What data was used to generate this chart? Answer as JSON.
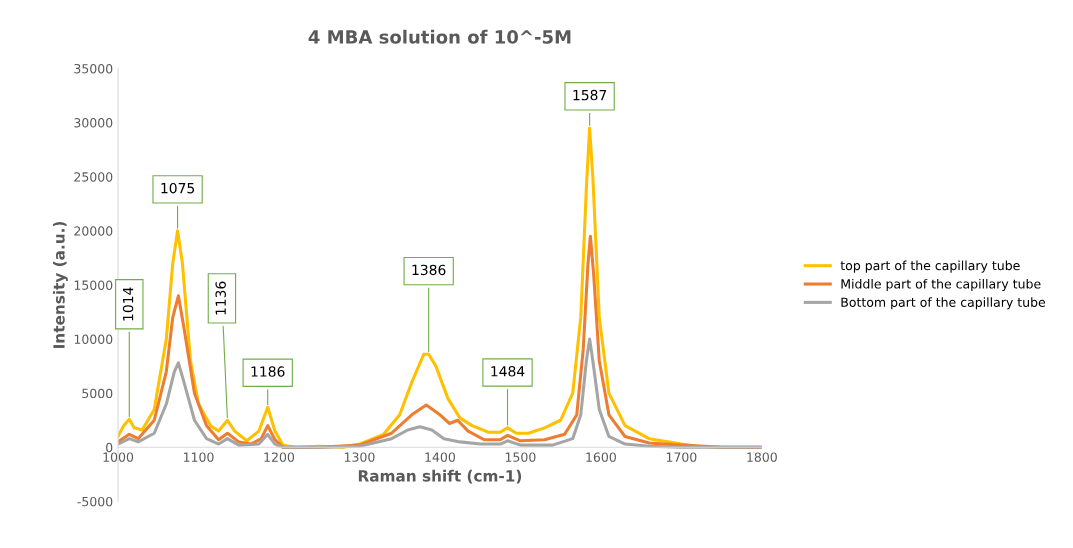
{
  "chart_data": {
    "type": "line",
    "title": "4 MBA solution of 10^-5M",
    "xlabel": "Raman shift (cm-1)",
    "ylabel": "Intensity (a.u.)",
    "xlim": [
      1000,
      1800
    ],
    "xticks": [
      1000,
      1100,
      1200,
      1300,
      1400,
      1500,
      1600,
      1700,
      1800
    ],
    "ylim": [
      -5000,
      35000
    ],
    "yticks": [
      -5000,
      0,
      5000,
      10000,
      15000,
      20000,
      25000,
      30000,
      35000
    ],
    "grid": false,
    "legend": "right",
    "marker": "none",
    "line_style": "solid",
    "series": [
      {
        "name": "top part of the capillary tube",
        "color": "#ffc000",
        "x": [
          1000,
          1007,
          1014,
          1020,
          1030,
          1045,
          1060,
          1068,
          1074,
          1080,
          1090,
          1100,
          1115,
          1125,
          1136,
          1145,
          1160,
          1175,
          1186,
          1195,
          1205,
          1220,
          1250,
          1280,
          1300,
          1330,
          1350,
          1365,
          1380,
          1386,
          1395,
          1410,
          1425,
          1440,
          1460,
          1475,
          1484,
          1495,
          1510,
          1530,
          1550,
          1565,
          1575,
          1582,
          1586,
          1590,
          1598,
          1610,
          1630,
          1660,
          1700,
          1720,
          1750,
          1800
        ],
        "values": [
          1000,
          2000,
          2600,
          1800,
          1600,
          3500,
          10000,
          17000,
          20000,
          17000,
          8000,
          4000,
          2000,
          1500,
          2500,
          1500,
          600,
          1500,
          3700,
          1500,
          200,
          0,
          100,
          0,
          300,
          1200,
          3000,
          6000,
          8600,
          8600,
          7500,
          4500,
          2700,
          2000,
          1400,
          1400,
          1800,
          1300,
          1300,
          1800,
          2500,
          5000,
          12000,
          24000,
          29500,
          25000,
          12000,
          5000,
          2000,
          800,
          300,
          100,
          0,
          0
        ]
      },
      {
        "name": "Middle part of the capillary tube",
        "color": "#ed7d31",
        "x": [
          1000,
          1014,
          1025,
          1045,
          1060,
          1068,
          1075,
          1082,
          1095,
          1110,
          1125,
          1136,
          1150,
          1165,
          1178,
          1186,
          1195,
          1205,
          1250,
          1300,
          1340,
          1365,
          1383,
          1400,
          1412,
          1422,
          1435,
          1455,
          1475,
          1484,
          1500,
          1530,
          1555,
          1570,
          1578,
          1584,
          1587,
          1591,
          1598,
          1610,
          1630,
          1660,
          1700,
          1750,
          1800
        ],
        "values": [
          500,
          1200,
          800,
          2500,
          7000,
          12000,
          14000,
          11000,
          5000,
          2000,
          700,
          1300,
          500,
          300,
          800,
          2000,
          700,
          0,
          0,
          200,
          1300,
          3000,
          3900,
          3000,
          2200,
          2500,
          1500,
          700,
          700,
          1100,
          600,
          700,
          1200,
          3000,
          9000,
          17000,
          19500,
          16000,
          8000,
          3000,
          1000,
          400,
          200,
          0,
          0
        ]
      },
      {
        "name": "Bottom part of the capillary tube",
        "color": "#a5a5a5",
        "x": [
          1000,
          1014,
          1025,
          1045,
          1060,
          1070,
          1075,
          1082,
          1095,
          1110,
          1125,
          1136,
          1150,
          1175,
          1186,
          1195,
          1205,
          1250,
          1300,
          1340,
          1360,
          1375,
          1390,
          1405,
          1425,
          1450,
          1475,
          1484,
          1500,
          1540,
          1565,
          1575,
          1582,
          1586,
          1590,
          1598,
          1610,
          1630,
          1660,
          1700,
          1800
        ],
        "values": [
          300,
          800,
          500,
          1300,
          4000,
          7000,
          7800,
          6000,
          2500,
          800,
          300,
          800,
          200,
          300,
          1200,
          300,
          0,
          0,
          100,
          800,
          1600,
          1900,
          1600,
          800,
          500,
          300,
          300,
          600,
          200,
          200,
          800,
          3000,
          8000,
          10000,
          8000,
          3500,
          1000,
          300,
          100,
          0,
          0
        ]
      }
    ],
    "annotations": [
      {
        "text": "1014",
        "x": 1014,
        "y": 2600
      },
      {
        "text": "1075",
        "x": 1074,
        "y": 20000
      },
      {
        "text": "1136",
        "x": 1136,
        "y": 2500
      },
      {
        "text": "1186",
        "x": 1186,
        "y": 3700
      },
      {
        "text": "1386",
        "x": 1386,
        "y": 8600
      },
      {
        "text": "1484",
        "x": 1484,
        "y": 1800
      },
      {
        "text": "1587",
        "x": 1586,
        "y": 29500
      }
    ]
  }
}
